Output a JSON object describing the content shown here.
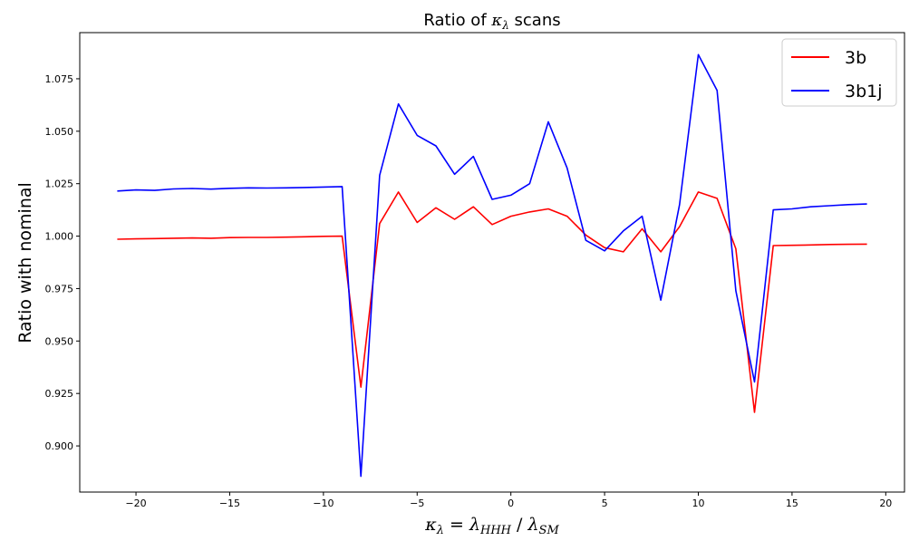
{
  "chart_data": {
    "type": "line",
    "title": "Ratio of κλ scans",
    "title_parts": {
      "prefix": "Ratio of ",
      "kappa": "κ",
      "kappa_sub": "λ",
      "suffix": " scans"
    },
    "xlabel": "κλ = λHHH / λSM",
    "xlabel_parts": {
      "k": "κ",
      "k_sub": "λ",
      "eq": " = ",
      "l1": "λ",
      "l1_sub": "HHH",
      "slash": " / ",
      "l2": "λ",
      "l2_sub": "SM"
    },
    "ylabel": "Ratio with nominal",
    "xlim": [
      -23.0,
      21.0
    ],
    "ylim": [
      0.878,
      1.097
    ],
    "xticks": [
      -20,
      -15,
      -10,
      -5,
      0,
      5,
      10,
      15,
      20
    ],
    "xtick_labels": [
      "−20",
      "−15",
      "−10",
      "−5",
      "0",
      "5",
      "10",
      "15",
      "20"
    ],
    "yticks": [
      0.9,
      0.925,
      0.95,
      0.975,
      1.0,
      1.025,
      1.05,
      1.075
    ],
    "ytick_labels": [
      "0.900",
      "0.925",
      "0.950",
      "0.975",
      "1.000",
      "1.025",
      "1.050",
      "1.075"
    ],
    "grid": false,
    "legend_position": "top-right",
    "series": [
      {
        "name": "3b",
        "color": "#ff0000",
        "x": [
          -21,
          -20,
          -19,
          -18,
          -17,
          -16,
          -15,
          -14,
          -13,
          -12,
          -11,
          -10,
          -9,
          -8,
          -7,
          -6,
          -5,
          -4,
          -3,
          -2,
          -1,
          0,
          1,
          2,
          3,
          4,
          5,
          6,
          7,
          8,
          9,
          10,
          11,
          12,
          13,
          14,
          15,
          16,
          17,
          18,
          19
        ],
        "y": [
          0.9985,
          0.9987,
          0.9988,
          0.999,
          0.9991,
          0.999,
          0.9993,
          0.9994,
          0.9994,
          0.9995,
          0.9997,
          0.9999,
          1.0,
          0.928,
          1.006,
          1.021,
          1.0065,
          1.0135,
          1.008,
          1.014,
          1.0055,
          1.0095,
          1.0115,
          1.013,
          1.0095,
          1.0005,
          0.9945,
          0.9925,
          1.0035,
          0.9925,
          1.0045,
          1.021,
          1.018,
          0.994,
          0.916,
          0.9955,
          0.9956,
          0.9958,
          0.996,
          0.9961,
          0.9962
        ]
      },
      {
        "name": "3b1j",
        "color": "#0000ff",
        "x": [
          -21,
          -20,
          -19,
          -18,
          -17,
          -16,
          -15,
          -14,
          -13,
          -12,
          -11,
          -10,
          -9,
          -8,
          -7,
          -6,
          -5,
          -4,
          -3,
          -2,
          -1,
          0,
          1,
          2,
          3,
          4,
          5,
          6,
          7,
          8,
          9,
          10,
          11,
          12,
          13,
          14,
          15,
          16,
          17,
          18,
          19
        ],
        "y": [
          1.0215,
          1.022,
          1.0218,
          1.0225,
          1.0227,
          1.0224,
          1.0228,
          1.023,
          1.0229,
          1.023,
          1.0232,
          1.0234,
          1.0236,
          0.8855,
          1.029,
          1.063,
          1.048,
          1.043,
          1.0295,
          1.038,
          1.0175,
          1.0195,
          1.025,
          1.0545,
          1.0325,
          0.998,
          0.993,
          1.0025,
          1.0095,
          0.9695,
          1.015,
          1.0865,
          1.0695,
          0.974,
          0.9305,
          1.0125,
          1.013,
          1.014,
          1.0145,
          1.015,
          1.0153
        ]
      }
    ]
  }
}
